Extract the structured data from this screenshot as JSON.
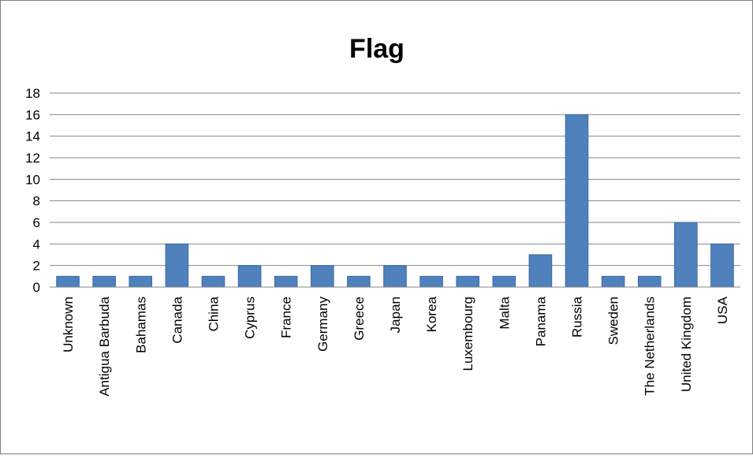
{
  "chart_data": {
    "type": "bar",
    "title": "Flag",
    "xlabel": "",
    "ylabel": "",
    "categories": [
      "Unknown",
      "Antigua Barbuda",
      "Bahamas",
      "Canada",
      "China",
      "Cyprus",
      "France",
      "Germany",
      "Greece",
      "Japan",
      "Korea",
      "Luxembourg",
      "Malta",
      "Panama",
      "Russia",
      "Sweden",
      "The Netherlands",
      "United Kingdom",
      "USA"
    ],
    "values": [
      1,
      1,
      1,
      4,
      1,
      2,
      1,
      2,
      1,
      2,
      1,
      1,
      1,
      3,
      16,
      1,
      1,
      6,
      4
    ],
    "ylim": [
      0,
      18
    ],
    "yticks": [
      "0",
      "2",
      "4",
      "6",
      "8",
      "10",
      "12",
      "14",
      "16",
      "18"
    ],
    "grid": true,
    "legend": "none",
    "colors": {
      "bar": "#4F81BD",
      "bar_edge": "#3A6AA3",
      "grid": "#868686"
    }
  }
}
